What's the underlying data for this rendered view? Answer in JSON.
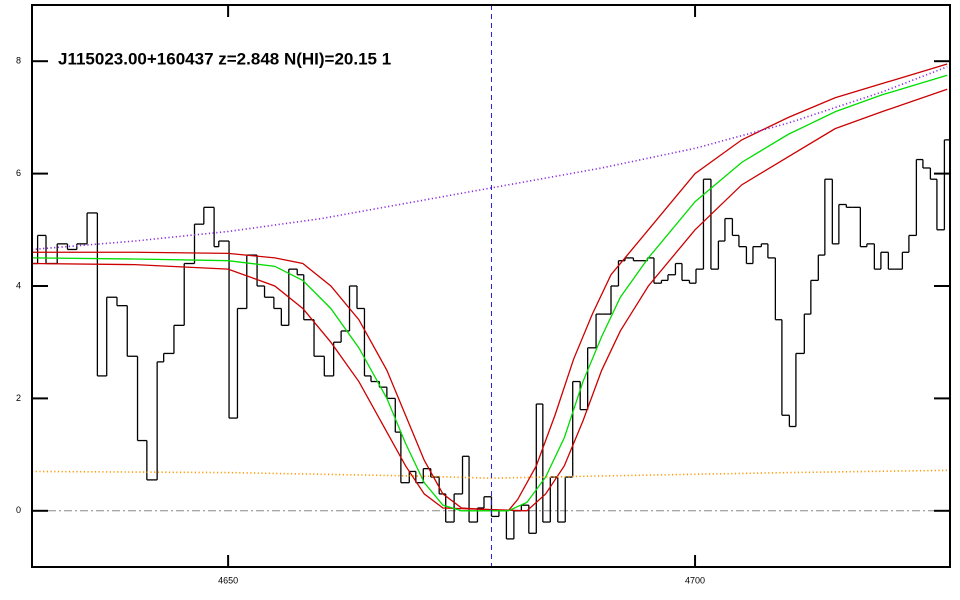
{
  "chart_data": {
    "type": "line",
    "title": "J115023.00+160437 z=2.848 N(HI)=20.15 1",
    "xlim": [
      4629,
      4727.3
    ],
    "ylim": [
      -1,
      9
    ],
    "xticks": [
      4650,
      4700
    ],
    "yticks": [
      0,
      2,
      4,
      6,
      8
    ],
    "hline": 0,
    "hline_color": "#888888",
    "vline": 4678.2,
    "vline_color": "#2020d0",
    "series": [
      {
        "color": "#000000",
        "step": true,
        "bins": [
          4628.9,
          4629.6,
          4630.5,
          4631.7,
          4632.8,
          4633.8,
          4634.9,
          4636.0,
          4637.0,
          4638.1,
          4639.2,
          4640.3,
          4641.3,
          4642.4,
          4643.1,
          4644.2,
          4645.3,
          4646.4,
          4647.4,
          4648.5,
          4649.0,
          4650.1,
          4651.0,
          4652.0,
          4653.1,
          4653.9,
          4654.9,
          4655.7,
          4656.5,
          4657.4,
          4658.1,
          4659.2,
          4660.3,
          4661.3,
          4662.1,
          4663.0,
          4663.8,
          4664.6,
          4665.3,
          4666.2,
          4667.0,
          4667.9,
          4668.5,
          4669.4,
          4670.1,
          4670.9,
          4671.7,
          4672.6,
          4673.3,
          4674.2,
          4675.1,
          4675.8,
          4676.7,
          4677.4,
          4678.2,
          4679.0,
          4679.8,
          4680.6,
          4681.4,
          4682.2,
          4683.0,
          4683.7,
          4684.5,
          4685.3,
          4686.1,
          4686.9,
          4687.7,
          4688.5,
          4689.4,
          4690.1,
          4691.0,
          4691.8,
          4692.5,
          4693.4,
          4694.1,
          4694.9,
          4695.6,
          4696.4,
          4697.1,
          4697.9,
          4698.6,
          4699.4,
          4700.1,
          4700.9,
          4701.7,
          4702.5,
          4703.2,
          4704.0,
          4704.7,
          4705.5,
          4706.2,
          4707.1,
          4707.8,
          4708.6,
          4709.3,
          4710.1,
          4710.8,
          4711.7,
          4712.4,
          4713.2,
          4713.9,
          4714.7,
          4715.4,
          4716.2,
          4716.9,
          4717.7,
          4718.4,
          4719.2,
          4719.9,
          4720.7,
          4721.4,
          4722.2,
          4722.9,
          4723.7,
          4724.4,
          4725.2,
          4725.9,
          4726.7,
          4727.2
        ],
        "values": [
          4.4,
          4.9,
          4.4,
          4.75,
          4.65,
          4.75,
          5.3,
          2.4,
          3.8,
          3.65,
          2.75,
          1.25,
          0.55,
          2.65,
          2.8,
          3.3,
          4.4,
          5.1,
          5.4,
          4.7,
          4.8,
          1.65,
          3.6,
          4.55,
          4.0,
          3.8,
          3.6,
          3.3,
          4.3,
          4.2,
          3.4,
          2.75,
          2.4,
          3.0,
          3.2,
          4.0,
          3.6,
          2.4,
          2.3,
          2.2,
          2.0,
          1.4,
          0.5,
          0.7,
          0.5,
          0.75,
          0.6,
          0.3,
          -0.2,
          0.3,
          0.97,
          -0.2,
          0.05,
          0.25,
          -0.1,
          0.0,
          -0.5,
          0.0,
          0.1,
          -0.4,
          1.9,
          -0.2,
          0.6,
          -0.2,
          0.6,
          2.3,
          1.8,
          2.9,
          3.5,
          3.5,
          4.0,
          4.45,
          4.5,
          4.45,
          4.45,
          4.5,
          4.05,
          4.1,
          4.2,
          4.4,
          4.1,
          4.05,
          4.3,
          5.9,
          4.3,
          4.8,
          5.2,
          4.9,
          4.7,
          4.4,
          4.7,
          4.75,
          4.5,
          3.4,
          1.7,
          1.5,
          2.8,
          3.5,
          4.1,
          4.55,
          5.9,
          4.75,
          5.45,
          5.4,
          5.4,
          4.7,
          4.75,
          4.3,
          4.6,
          4.3,
          4.3,
          4.6,
          4.9,
          6.25,
          6.1,
          5.9,
          5.0,
          6.6
        ]
      },
      {
        "color": "#cc0000",
        "dash": "solid",
        "x": [
          4629,
          4640,
          4650,
          4655,
          4658,
          4661,
          4664,
          4667,
          4669,
          4671,
          4673,
          4675,
          4680,
          4681,
          4683,
          4685,
          4687,
          4689,
          4691,
          4695,
          4700,
          4705,
          4710,
          4715,
          4720,
          4727
        ],
        "values": [
          4.6,
          4.6,
          4.58,
          4.5,
          4.4,
          4.0,
          3.4,
          2.5,
          1.7,
          0.9,
          0.3,
          0.05,
          0.0,
          0.2,
          0.8,
          1.7,
          2.7,
          3.5,
          4.2,
          5.0,
          6.0,
          6.6,
          7.0,
          7.35,
          7.6,
          7.95
        ]
      },
      {
        "color": "#cc0000",
        "dash": "solid",
        "x": [
          4629,
          4640,
          4650,
          4655,
          4658,
          4661,
          4664,
          4667,
          4669,
          4671,
          4673,
          4682,
          4684,
          4686,
          4688,
          4690,
          4692,
          4695,
          4700,
          4705,
          4710,
          4715,
          4720,
          4727
        ],
        "values": [
          4.4,
          4.38,
          4.3,
          4.0,
          3.6,
          3.0,
          2.3,
          1.4,
          0.8,
          0.3,
          0.05,
          0.0,
          0.3,
          0.8,
          1.6,
          2.5,
          3.2,
          4.0,
          5.0,
          5.8,
          6.3,
          6.8,
          7.1,
          7.5
        ]
      },
      {
        "color": "#00dd00",
        "dash": "solid",
        "x": [
          4629,
          4640,
          4650,
          4655,
          4658,
          4661,
          4664,
          4667,
          4669,
          4671,
          4673,
          4675,
          4680,
          4682,
          4684,
          4686,
          4688,
          4690,
          4692,
          4695,
          4700,
          4705,
          4710,
          4715,
          4720,
          4727
        ],
        "values": [
          4.5,
          4.48,
          4.45,
          4.35,
          4.1,
          3.6,
          2.9,
          2.0,
          1.2,
          0.5,
          0.1,
          0.0,
          0.0,
          0.15,
          0.6,
          1.3,
          2.3,
          3.1,
          3.8,
          4.5,
          5.5,
          6.2,
          6.7,
          7.1,
          7.4,
          7.75
        ]
      },
      {
        "color": "#8a2be2",
        "dash": "dotted",
        "x": [
          4629,
          4640,
          4650,
          4660,
          4670,
          4680,
          4690,
          4700,
          4710,
          4720,
          4727
        ],
        "values": [
          4.65,
          4.8,
          4.97,
          5.2,
          5.5,
          5.8,
          6.1,
          6.45,
          6.9,
          7.45,
          7.9
        ]
      },
      {
        "color": "#ff9900",
        "dash": "dotted",
        "x": [
          4629,
          4650,
          4670,
          4678,
          4690,
          4710,
          4727
        ],
        "values": [
          0.7,
          0.68,
          0.62,
          0.58,
          0.62,
          0.68,
          0.72
        ]
      }
    ]
  }
}
